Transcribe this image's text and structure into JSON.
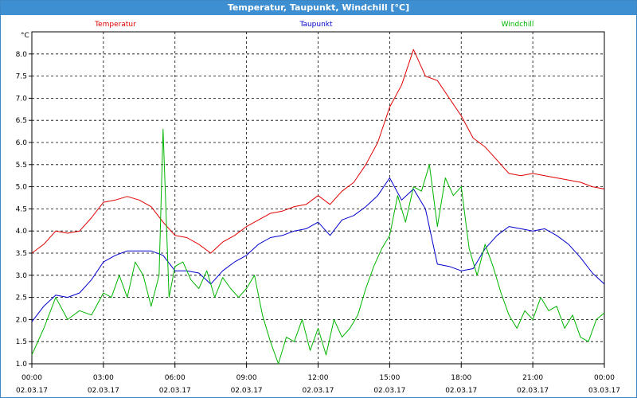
{
  "window": {
    "title": "Temperatur, Taupunkt, Windchill [°C]"
  },
  "chart_data": {
    "type": "line",
    "title": "Temperatur, Taupunkt, Windchill [°C]",
    "ylabel": "°C",
    "ylim": [
      1.0,
      8.5
    ],
    "xlim": [
      "02.03.17 00:00",
      "03.03.17 00:00"
    ],
    "grid": true,
    "legend": "top",
    "y_ticks": [
      "1.0",
      "1.5",
      "2.0",
      "2.5",
      "3.0",
      "3.5",
      "4.0",
      "4.5",
      "5.0",
      "5.5",
      "6.0",
      "6.5",
      "7.0",
      "7.5",
      "8.0"
    ],
    "x_ticks": [
      {
        "time": "00:00",
        "date": "02.03.17"
      },
      {
        "time": "03:00",
        "date": "02.03.17"
      },
      {
        "time": "06:00",
        "date": "02.03.17"
      },
      {
        "time": "09:00",
        "date": "02.03.17"
      },
      {
        "time": "12:00",
        "date": "02.03.17"
      },
      {
        "time": "15:00",
        "date": "02.03.17"
      },
      {
        "time": "18:00",
        "date": "02.03.17"
      },
      {
        "time": "21:00",
        "date": "02.03.17"
      },
      {
        "time": "00:00",
        "date": "03.03.17"
      }
    ],
    "series": [
      {
        "name": "Temperatur",
        "color": "#e00000",
        "x": [
          "00:00",
          "00:30",
          "01:00",
          "01:30",
          "02:00",
          "02:30",
          "03:00",
          "03:30",
          "04:00",
          "04:30",
          "05:00",
          "05:30",
          "06:00",
          "06:30",
          "07:00",
          "07:30",
          "08:00",
          "08:30",
          "09:00",
          "09:30",
          "10:00",
          "10:30",
          "11:00",
          "11:30",
          "12:00",
          "12:30",
          "13:00",
          "13:30",
          "14:00",
          "14:30",
          "15:00",
          "15:30",
          "16:00",
          "16:30",
          "17:00",
          "17:30",
          "18:00",
          "18:30",
          "19:00",
          "19:30",
          "20:00",
          "20:30",
          "21:00",
          "21:30",
          "22:00",
          "22:30",
          "23:00",
          "23:30",
          "24:00"
        ],
        "values": [
          3.5,
          3.7,
          4.0,
          3.95,
          4.0,
          4.3,
          4.65,
          4.7,
          4.78,
          4.7,
          4.55,
          4.2,
          3.9,
          3.85,
          3.7,
          3.5,
          3.75,
          3.9,
          4.1,
          4.25,
          4.4,
          4.45,
          4.55,
          4.6,
          4.8,
          4.6,
          4.9,
          5.1,
          5.5,
          6.0,
          6.8,
          7.3,
          8.1,
          7.5,
          7.4,
          7.0,
          6.6,
          6.1,
          5.9,
          5.6,
          5.3,
          5.25,
          5.3,
          5.25,
          5.2,
          5.15,
          5.1,
          5.0,
          4.95
        ]
      },
      {
        "name": "Taupunkt",
        "color": "#0000cc",
        "x": [
          "00:00",
          "00:30",
          "01:00",
          "01:30",
          "02:00",
          "02:30",
          "03:00",
          "03:30",
          "04:00",
          "04:30",
          "05:00",
          "05:30",
          "06:00",
          "06:30",
          "07:00",
          "07:30",
          "08:00",
          "08:30",
          "09:00",
          "09:30",
          "10:00",
          "10:30",
          "11:00",
          "11:30",
          "12:00",
          "12:30",
          "13:00",
          "13:30",
          "14:00",
          "14:30",
          "15:00",
          "15:30",
          "16:00",
          "16:30",
          "17:00",
          "17:30",
          "18:00",
          "18:30",
          "19:00",
          "19:30",
          "20:00",
          "20:30",
          "21:00",
          "21:30",
          "22:00",
          "22:30",
          "23:00",
          "23:30",
          "24:00"
        ],
        "values": [
          1.95,
          2.3,
          2.55,
          2.5,
          2.6,
          2.9,
          3.3,
          3.45,
          3.55,
          3.55,
          3.55,
          3.45,
          3.1,
          3.1,
          3.05,
          2.8,
          3.1,
          3.3,
          3.45,
          3.7,
          3.85,
          3.9,
          4.0,
          4.05,
          4.2,
          3.9,
          4.25,
          4.35,
          4.55,
          4.8,
          5.2,
          4.7,
          4.95,
          4.5,
          3.25,
          3.2,
          3.1,
          3.15,
          3.6,
          3.9,
          4.1,
          4.05,
          4.0,
          4.05,
          3.9,
          3.7,
          3.4,
          3.05,
          2.8
        ]
      },
      {
        "name": "Windchill",
        "color": "#00b400",
        "x": [
          "00:00",
          "00:30",
          "01:00",
          "01:30",
          "02:00",
          "02:30",
          "03:00",
          "03:20",
          "03:40",
          "04:00",
          "04:20",
          "04:40",
          "05:00",
          "05:20",
          "05:30",
          "05:45",
          "06:00",
          "06:20",
          "06:40",
          "07:00",
          "07:20",
          "07:40",
          "08:00",
          "08:20",
          "08:40",
          "09:00",
          "09:20",
          "09:40",
          "10:00",
          "10:20",
          "10:40",
          "11:00",
          "11:20",
          "11:40",
          "12:00",
          "12:20",
          "12:40",
          "13:00",
          "13:20",
          "13:40",
          "14:00",
          "14:20",
          "14:40",
          "15:00",
          "15:20",
          "15:40",
          "16:00",
          "16:20",
          "16:40",
          "17:00",
          "17:20",
          "17:40",
          "18:00",
          "18:20",
          "18:40",
          "19:00",
          "19:20",
          "19:40",
          "20:00",
          "20:20",
          "20:40",
          "21:00",
          "21:20",
          "21:40",
          "22:00",
          "22:20",
          "22:40",
          "23:00",
          "23:20",
          "23:40",
          "24:00"
        ],
        "values": [
          1.2,
          1.8,
          2.5,
          2.0,
          2.2,
          2.1,
          2.6,
          2.5,
          3.0,
          2.5,
          3.3,
          3.0,
          2.3,
          3.0,
          6.3,
          2.5,
          3.2,
          3.3,
          2.9,
          2.7,
          3.1,
          2.5,
          2.95,
          2.7,
          2.5,
          2.7,
          3.0,
          2.1,
          1.5,
          1.0,
          1.6,
          1.5,
          2.0,
          1.3,
          1.8,
          1.2,
          2.0,
          1.6,
          1.8,
          2.1,
          2.7,
          3.2,
          3.6,
          3.9,
          4.8,
          4.2,
          5.0,
          4.9,
          5.5,
          4.1,
          5.2,
          4.8,
          5.0,
          3.6,
          3.0,
          3.7,
          3.2,
          2.6,
          2.1,
          1.8,
          2.2,
          2.0,
          2.5,
          2.2,
          2.3,
          1.8,
          2.1,
          1.6,
          1.5,
          2.0,
          2.15
        ]
      }
    ]
  }
}
